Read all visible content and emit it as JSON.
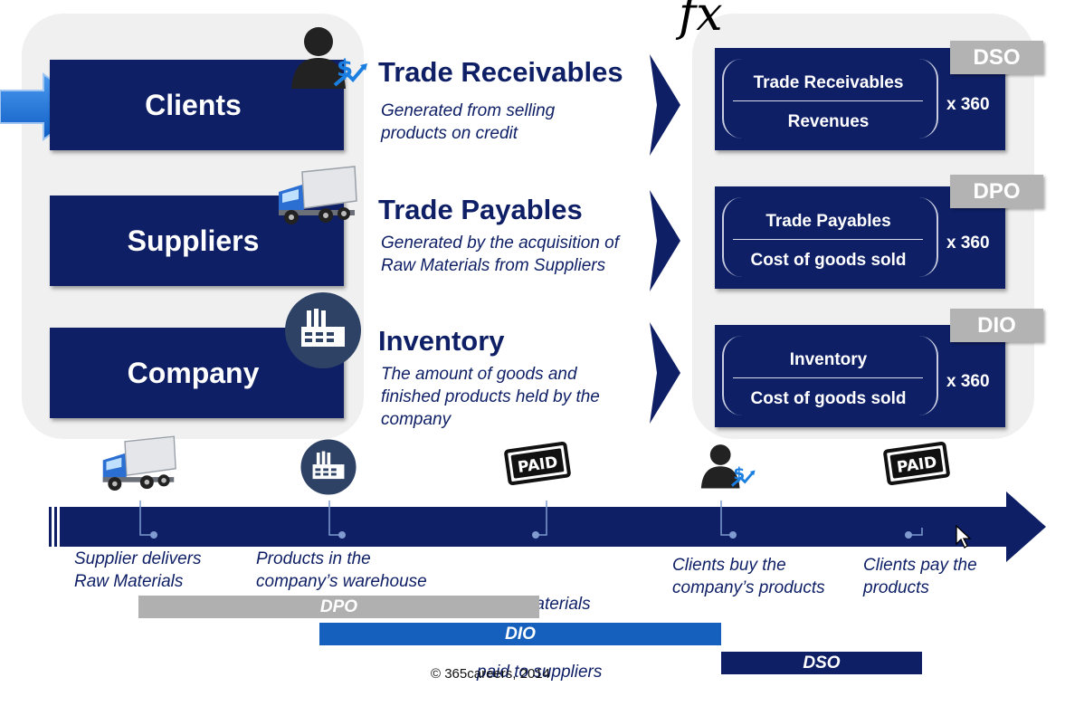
{
  "formula_symbol": "fx",
  "entities": [
    {
      "label": "Clients",
      "icon": "person-dollar-icon"
    },
    {
      "label": "Suppliers",
      "icon": "truck-icon"
    },
    {
      "label": "Company",
      "icon": "factory-icon"
    }
  ],
  "items": [
    {
      "title": "Trade Receivables",
      "desc_lines": [
        "Generated from selling",
        "products on credit"
      ]
    },
    {
      "title": "Trade Payables",
      "desc_lines": [
        "Generated by the acquisition of",
        "Raw Materials from Suppliers"
      ]
    },
    {
      "title": "Inventory",
      "desc_lines": [
        "The amount of goods and",
        "finished products held by the",
        "company"
      ]
    }
  ],
  "formulas": [
    {
      "tag": "DSO",
      "numerator": "Trade Receivables",
      "denominator": "Revenues",
      "multiplier": "x 360"
    },
    {
      "tag": "DPO",
      "numerator": "Trade Payables",
      "denominator": "Cost of goods sold",
      "multiplier": "x 360"
    },
    {
      "tag": "DIO",
      "numerator": "Inventory",
      "denominator": "Cost of goods sold",
      "multiplier": "x 360"
    }
  ],
  "timeline": {
    "events": [
      {
        "lines": [
          "Supplier delivers",
          "Raw Materials"
        ],
        "icon": "truck-icon"
      },
      {
        "lines": [
          "Products in the",
          "company’s warehouse"
        ],
        "icon": "factory-icon"
      },
      {
        "lines": [
          "Raw  Materials",
          "paid to suppliers"
        ],
        "icon": "paid-stamp-icon",
        "stamp_text": "PAID"
      },
      {
        "lines": [
          "Clients buy the",
          "company’s products"
        ],
        "icon": "person-dollar-icon"
      },
      {
        "lines": [
          "Clients pay the",
          "products"
        ],
        "icon": "paid-stamp-icon",
        "stamp_text": "PAID"
      }
    ],
    "bars": [
      {
        "label": "DPO",
        "color": "#b0b0b0"
      },
      {
        "label": "DIO",
        "color": "#1560bd"
      },
      {
        "label": "DSO",
        "color": "#0e1f66"
      }
    ]
  },
  "colors": {
    "navy": "#0e1f66",
    "accent_blue": "#1a6fd6",
    "gray": "#b3b3b3"
  },
  "copyright": "© 365careers, 2014"
}
